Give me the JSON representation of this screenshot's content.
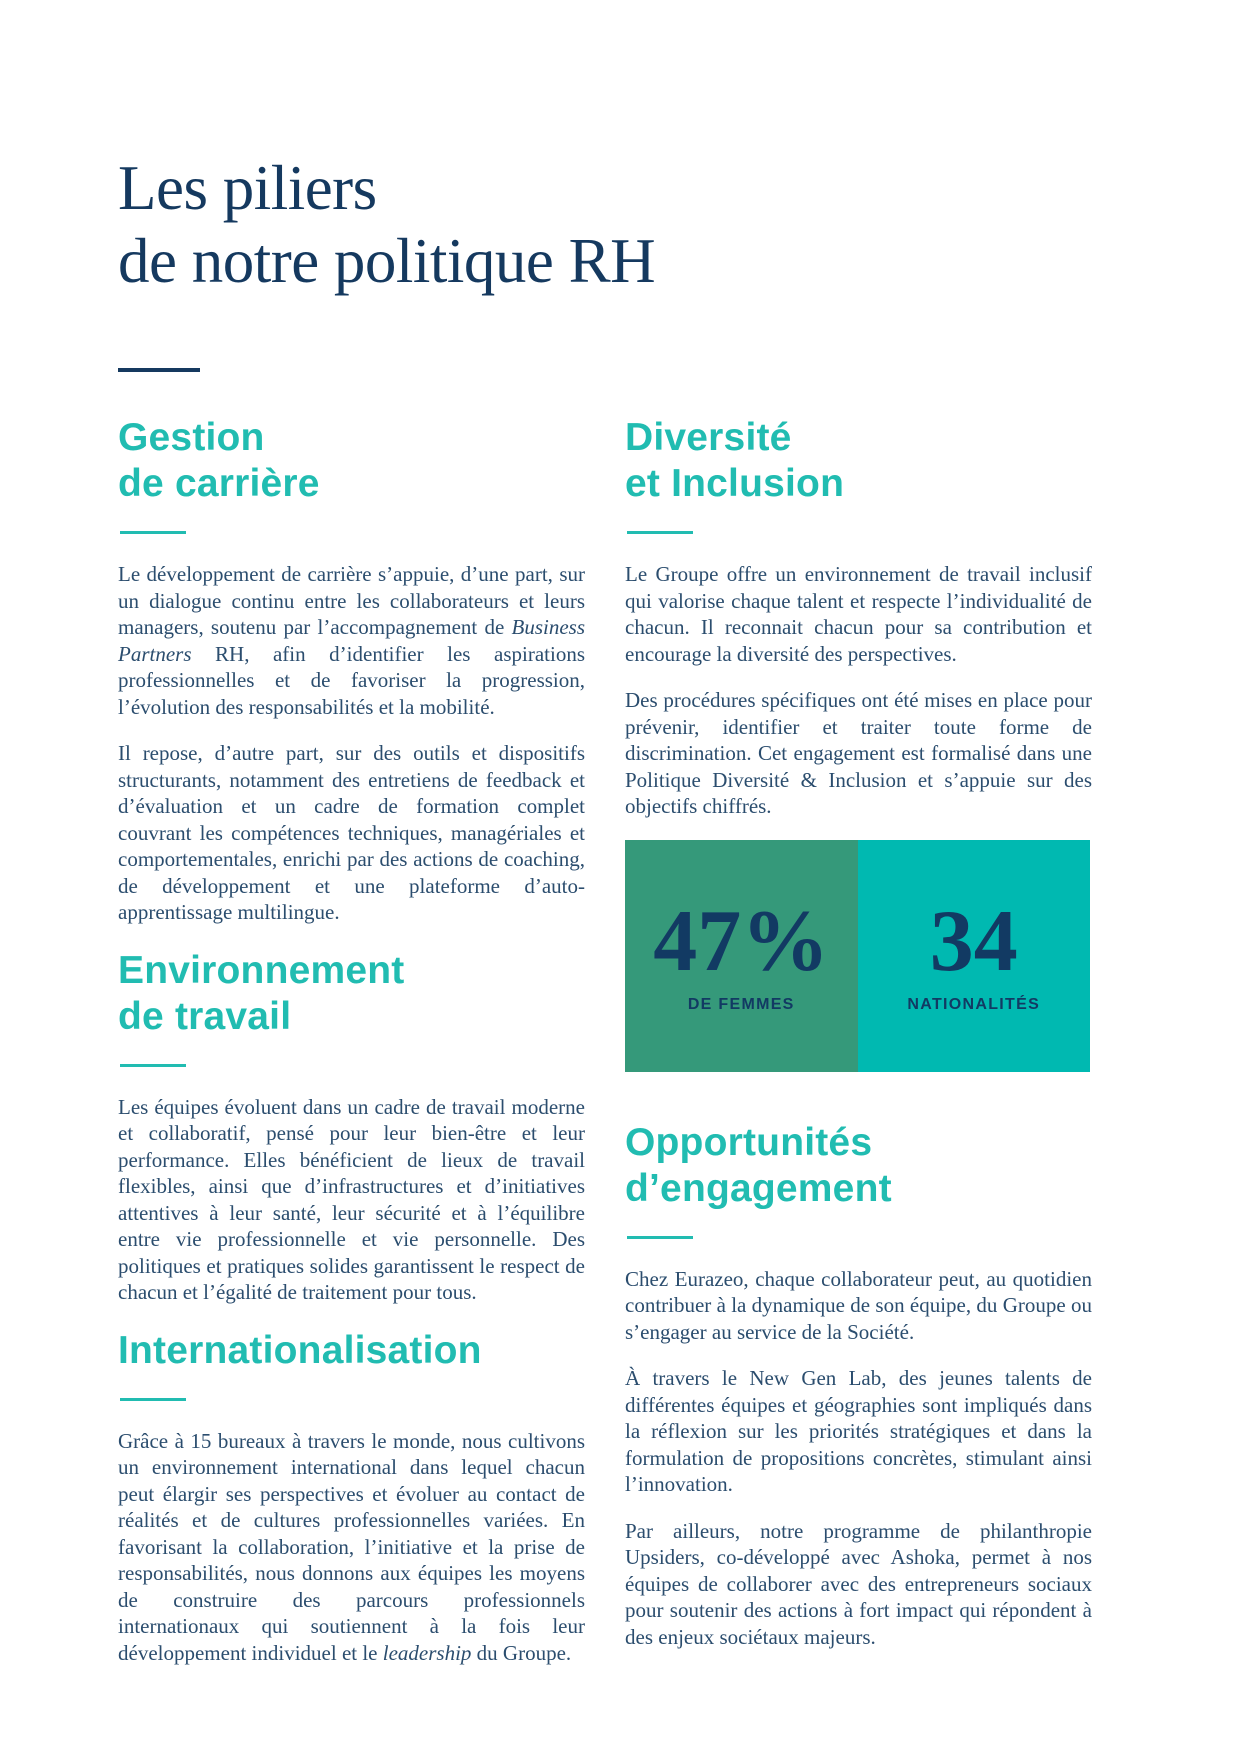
{
  "page": {
    "title_line1": "Les piliers",
    "title_line2": "de notre politique RH"
  },
  "colors": {
    "navy_title": "#15395F",
    "body_text": "#2B4D6E",
    "accent_teal": "#21BCB1",
    "stat_green": "#35997A",
    "stat_teal": "#00B9B1",
    "stat_text": "#123A63"
  },
  "sections": {
    "gestion": {
      "heading": "Gestion\nde carrière",
      "p1a": "Le développement de carrière s’appuie, d’une part, sur un dialogue continu entre les collaborateurs et leurs managers, soutenu par l’accompagnement de ",
      "p1b": "Business Partners",
      "p1c": " RH, afin d’identifier les aspirations professionnelles et de favoriser la progression, l’évolution des responsabilités et la mobilité.",
      "p2": "Il repose, d’autre part, sur des outils et dispositifs structurants, notamment des entretiens de feedback et d’évaluation et un cadre de formation complet couvrant les compétences techniques, managériales et comportementales, enrichi par des actions de coaching, de développement et une plateforme d’auto-apprentissage multilingue."
    },
    "environnement": {
      "heading": "Environnement\nde travail",
      "p1": "Les équipes évoluent dans un cadre de travail moderne et collaboratif, pensé pour leur bien-être et leur performance. Elles bénéficient de lieux de travail flexibles, ainsi que d’infrastructures et d’initiatives attentives à leur santé, leur sécurité et à l’équilibre entre vie professionnelle et vie personnelle. Des politiques et pratiques solides garantissent le respect de chacun et l’égalité de traitement pour tous."
    },
    "internationalisation": {
      "heading": "Internationalisation",
      "p1a": "Grâce à 15 bureaux à travers le monde, nous cultivons un environnement international dans lequel chacun peut élargir ses perspectives et évoluer au contact de réalités et de cultures professionnelles variées. En favorisant la collaboration, l’initiative et la prise de responsabilités, nous donnons aux équipes les moyens de construire des parcours professionnels internationaux qui soutiennent à la fois leur développement individuel et le ",
      "p1b": "leadership",
      "p1c": " du Groupe."
    },
    "diversite": {
      "heading": "Diversité\net Inclusion",
      "p1": "Le Groupe offre un environnement de travail inclusif qui valorise chaque talent et respecte l’individualité de chacun. Il reconnait chacun pour sa contribution et encourage la diversité des perspectives.",
      "p2": "Des procédures spécifiques ont été mises en place pour prévenir, identifier et traiter toute forme de discrimination. Cet engagement est formalisé dans une Politique Diversité & Inclusion et s’appuie sur des objectifs chiffrés."
    },
    "opportunites": {
      "heading": "Opportunités\nd’engagement",
      "p1": "Chez Eurazeo, chaque collaborateur peut, au quotidien contribuer à la dynamique de son équipe, du Groupe ou s’engager au service de la Société.",
      "p2": "À travers le New Gen Lab, des jeunes talents de différentes équipes et géographies sont impliqués dans la réflexion sur les priorités stratégiques et dans la formulation de propositions concrètes, stimulant ainsi l’innovation.",
      "p3": "Par ailleurs, notre programme de philanthropie Upsiders, co-développé avec Ashoka, permet à nos équipes de collaborer avec des entrepreneurs sociaux pour soutenir des actions à fort impact qui répondent à des enjeux sociétaux majeurs."
    }
  },
  "stats": [
    {
      "value": "47%",
      "label": "DE FEMMES",
      "bg": "#35997A"
    },
    {
      "value": "34",
      "label": "NATIONALITÉS",
      "bg": "#00B9B1"
    }
  ]
}
